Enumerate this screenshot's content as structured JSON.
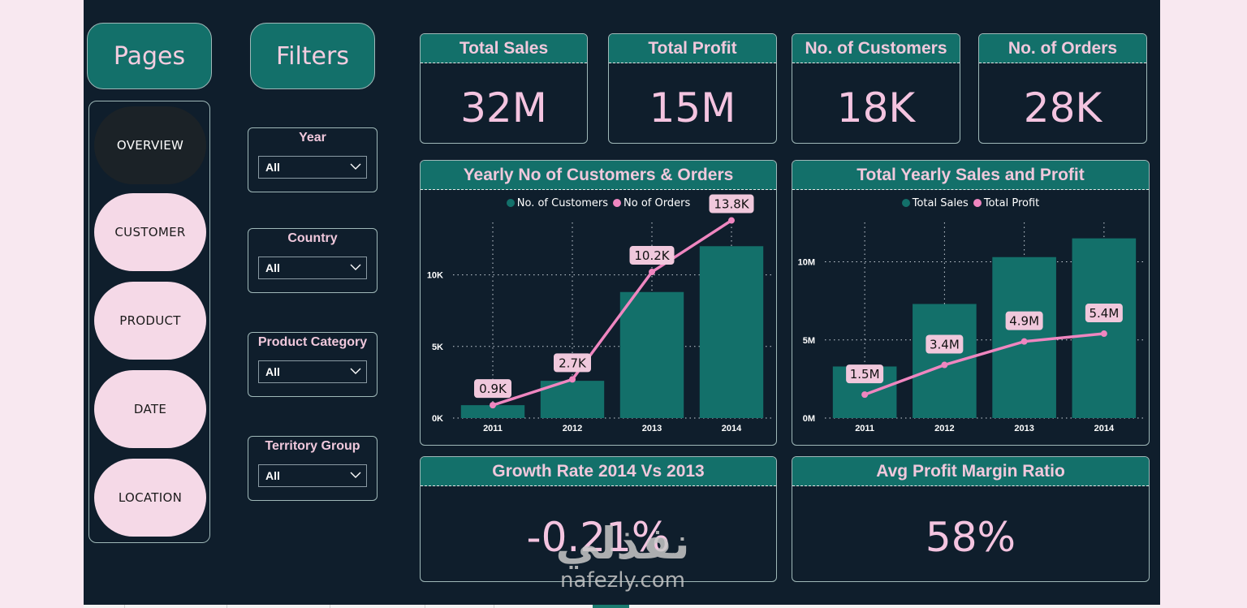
{
  "nav": {
    "pages_label": "Pages",
    "filters_label": "Filters",
    "pages": [
      {
        "label": "OVERVIEW",
        "active": true
      },
      {
        "label": "CUSTOMER",
        "active": false
      },
      {
        "label": "PRODUCT",
        "active": false
      },
      {
        "label": "DATE",
        "active": false
      },
      {
        "label": "LOCATION",
        "active": false
      }
    ]
  },
  "filters": [
    {
      "title": "Year",
      "value": "All"
    },
    {
      "title": "Country",
      "value": "All"
    },
    {
      "title": "Product Category",
      "value": "All"
    },
    {
      "title": "Territory Group",
      "value": "All"
    }
  ],
  "kpis": [
    {
      "title": "Total Sales",
      "value": "32M"
    },
    {
      "title": "Total Profit",
      "value": "15M"
    },
    {
      "title": "No. of Customers",
      "value": "18K"
    },
    {
      "title": "No. of Orders",
      "value": "28K"
    }
  ],
  "bottom_kpis": [
    {
      "title": "Growth Rate 2014 Vs 2013",
      "value": "-0.21%"
    },
    {
      "title": "Avg Profit Margin Ratio",
      "value": "58%"
    }
  ],
  "colors": {
    "teal": "#13706a",
    "pink": "#ef86c0",
    "label_bg": "#f0c8dc",
    "background": "#0f1e2c"
  },
  "watermark": {
    "arabic": "نفذلي",
    "latin": "nafezly.com"
  },
  "chart_data": [
    {
      "type": "bar+line",
      "title": "Yearly No of Customers & Orders",
      "categories": [
        "2011",
        "2012",
        "2013",
        "2014"
      ],
      "series": [
        {
          "name": "No. of Customers",
          "kind": "bar",
          "values": [
            900,
            2600,
            8800,
            12000
          ]
        },
        {
          "name": "No of Orders",
          "kind": "line",
          "values": [
            900,
            2700,
            10200,
            13800
          ],
          "labels": [
            "0.9K",
            "2.7K",
            "10.2K",
            "13.8K"
          ]
        }
      ],
      "yticks": [
        {
          "value": 0,
          "label": "0K"
        },
        {
          "value": 5000,
          "label": "5K"
        },
        {
          "value": 10000,
          "label": "10K"
        }
      ],
      "ylim": [
        0,
        14000
      ],
      "grid": true,
      "legend": "top-center"
    },
    {
      "type": "bar+line",
      "title": "Total Yearly Sales and Profit",
      "categories": [
        "2011",
        "2012",
        "2013",
        "2014"
      ],
      "series": [
        {
          "name": "Total Sales",
          "kind": "bar",
          "values": [
            3300000,
            7300000,
            10300000,
            11500000
          ]
        },
        {
          "name": "Total Profit",
          "kind": "line",
          "values": [
            1500000,
            3400000,
            4900000,
            5400000
          ],
          "labels": [
            "1.5M",
            "3.4M",
            "4.9M",
            "5.4M"
          ]
        }
      ],
      "yticks": [
        {
          "value": 0,
          "label": "0M"
        },
        {
          "value": 5000000,
          "label": "5M"
        },
        {
          "value": 10000000,
          "label": "10M"
        }
      ],
      "ylim": [
        0,
        12000000
      ],
      "grid": true,
      "legend": "top-center"
    }
  ]
}
